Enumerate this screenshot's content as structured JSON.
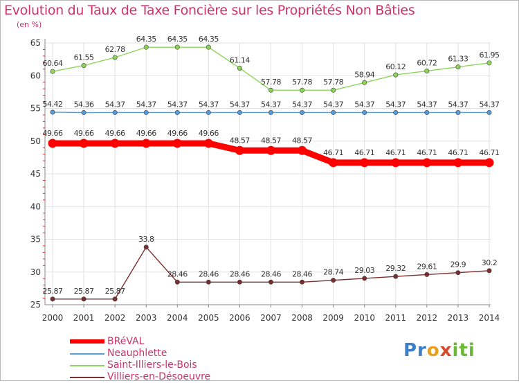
{
  "chart_data": {
    "type": "line",
    "title": "Evolution du Taux de Taxe Foncière sur les Propriétés Non Bâties",
    "unit_label": "(en %)",
    "x": [
      "2000",
      "2001",
      "2002",
      "2003",
      "2004",
      "2005",
      "2006",
      "2007",
      "2008",
      "2009",
      "2010",
      "2011",
      "2012",
      "2013",
      "2014"
    ],
    "ylim": [
      25,
      65
    ],
    "yticks": [
      25,
      30,
      35,
      40,
      45,
      50,
      55,
      60,
      65
    ],
    "series": [
      {
        "name": "BRéVAL",
        "color": "#ff0000",
        "emphasis": "thick",
        "values": [
          49.66,
          49.66,
          49.66,
          49.66,
          49.66,
          49.66,
          48.57,
          48.57,
          48.57,
          46.71,
          46.71,
          46.71,
          46.71,
          46.71,
          46.71
        ],
        "labels": [
          "49.66",
          "49.66",
          "49.66",
          "49.66",
          "49.66",
          "49.66",
          "48.57",
          "48.57",
          "48.57",
          "46.71",
          "46.71",
          "46.71",
          "46.71",
          "46.71",
          "46.71"
        ]
      },
      {
        "name": "Neauphlette",
        "color": "#5b9bd5",
        "emphasis": "thin",
        "values": [
          54.42,
          54.36,
          54.37,
          54.37,
          54.37,
          54.37,
          54.37,
          54.37,
          54.37,
          54.37,
          54.37,
          54.37,
          54.37,
          54.37,
          54.37
        ],
        "labels": [
          "54.42",
          "54.36",
          "54.37",
          "54.37",
          "54.37",
          "54.37",
          "54.37",
          "54.37",
          "54.37",
          "54.37",
          "54.37",
          "54.37",
          "54.37",
          "54.37",
          "54.37"
        ]
      },
      {
        "name": "Saint-Illiers-le-Bois",
        "color": "#8ed45a",
        "emphasis": "thin",
        "values": [
          60.64,
          61.55,
          62.78,
          64.35,
          64.35,
          64.35,
          61.14,
          57.78,
          57.78,
          57.78,
          58.94,
          60.12,
          60.72,
          61.33,
          61.95
        ],
        "labels": [
          "60.64",
          "61.55",
          "62.78",
          "64.35",
          "64.35",
          "64.35",
          "61.14",
          "57.78",
          "57.78",
          "57.78",
          "58.94",
          "60.12",
          "60.72",
          "61.33",
          "61.95"
        ]
      },
      {
        "name": "Villiers-en-Désoeuvre",
        "color": "#7a2e2e",
        "emphasis": "thin",
        "values": [
          25.87,
          25.87,
          25.87,
          33.8,
          28.46,
          28.46,
          28.46,
          28.46,
          28.46,
          28.74,
          29.03,
          29.32,
          29.61,
          29.9,
          30.2
        ],
        "labels": [
          "25.87",
          "25.87",
          "25.87",
          "33.8",
          "28.46",
          "28.46",
          "28.46",
          "28.46",
          "28.46",
          "28.74",
          "29.03",
          "29.32",
          "29.61",
          "29.9",
          "30.2"
        ]
      }
    ]
  },
  "logo": {
    "text": "Proxiti",
    "p1": "Pr",
    "p2": "o",
    "p3": "x",
    "p4": "iti"
  }
}
